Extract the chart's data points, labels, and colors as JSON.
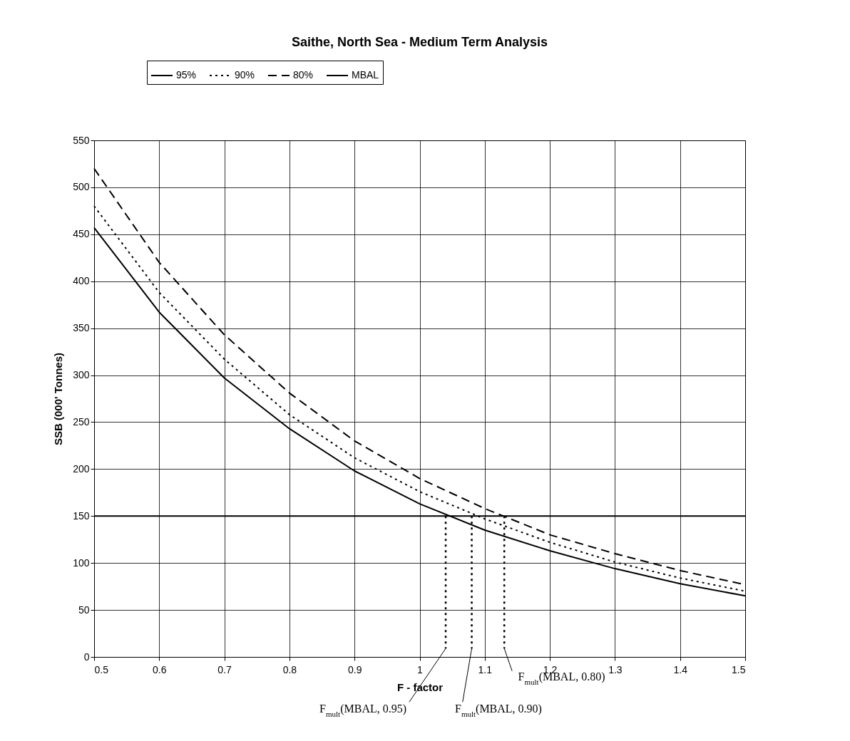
{
  "chart_data": {
    "type": "line",
    "title": "Saithe, North Sea - Medium Term Analysis",
    "xlabel": "F - factor",
    "ylabel": "SSB (000' Tonnes)",
    "x": [
      0.5,
      0.6,
      0.7,
      0.8,
      0.9,
      1,
      1.1,
      1.2,
      1.3,
      1.4,
      1.5
    ],
    "series": [
      {
        "name": "95%",
        "color": "#000000",
        "line_style": "solid",
        "values": [
          457,
          367,
          297,
          243,
          198,
          163,
          135,
          113,
          94,
          78,
          65
        ]
      },
      {
        "name": "90%",
        "color": "#000000",
        "line_style": "dotted",
        "values": [
          480,
          388,
          317,
          258,
          212,
          176,
          147,
          122,
          101,
          84,
          70
        ]
      },
      {
        "name": "80%",
        "color": "#000000",
        "line_style": "dashed",
        "values": [
          520,
          420,
          343,
          281,
          230,
          190,
          158,
          130,
          110,
          92,
          77
        ]
      },
      {
        "name": "MBAL",
        "color": "#000000",
        "line_style": "solid",
        "values": [
          150,
          150,
          150,
          150,
          150,
          150,
          150,
          150,
          150,
          150,
          150
        ]
      },
      {
        "color": "#000000",
        "line_style": "dotted",
        "x": [
          1.04,
          1.04
        ],
        "values": [
          150,
          9
        ]
      },
      {
        "color": "#000000",
        "line_style": "dotted",
        "x": [
          1.08,
          1.08
        ],
        "values": [
          150,
          9
        ]
      },
      {
        "color": "#000000",
        "line_style": "dotted",
        "x": [
          1.13,
          1.13
        ],
        "values": [
          150,
          9
        ]
      }
    ],
    "annotations": [
      {
        "text": "F$_{mult}$(MBAL, 0.95)",
        "x": 1.04,
        "y": 9
      },
      {
        "text": "F$_{mult}$(MBAL, 0.90)",
        "x": 1.08,
        "y": 9
      },
      {
        "text": "F$_{mult}$(MBAL, 0.80)",
        "x": 1.13,
        "y": 9
      }
    ],
    "xlim": [
      0.5,
      1.5
    ],
    "xticks": [
      0.5,
      0.6,
      0.7,
      0.8,
      0.9,
      1,
      1.1,
      1.2,
      1.3,
      1.4,
      1.5
    ],
    "ylim": [
      0,
      550
    ],
    "yticks": [
      0,
      50,
      100,
      150,
      200,
      250,
      300,
      350,
      400,
      450,
      500,
      550
    ],
    "grid": true,
    "legend": "top",
    "marker": "none"
  }
}
